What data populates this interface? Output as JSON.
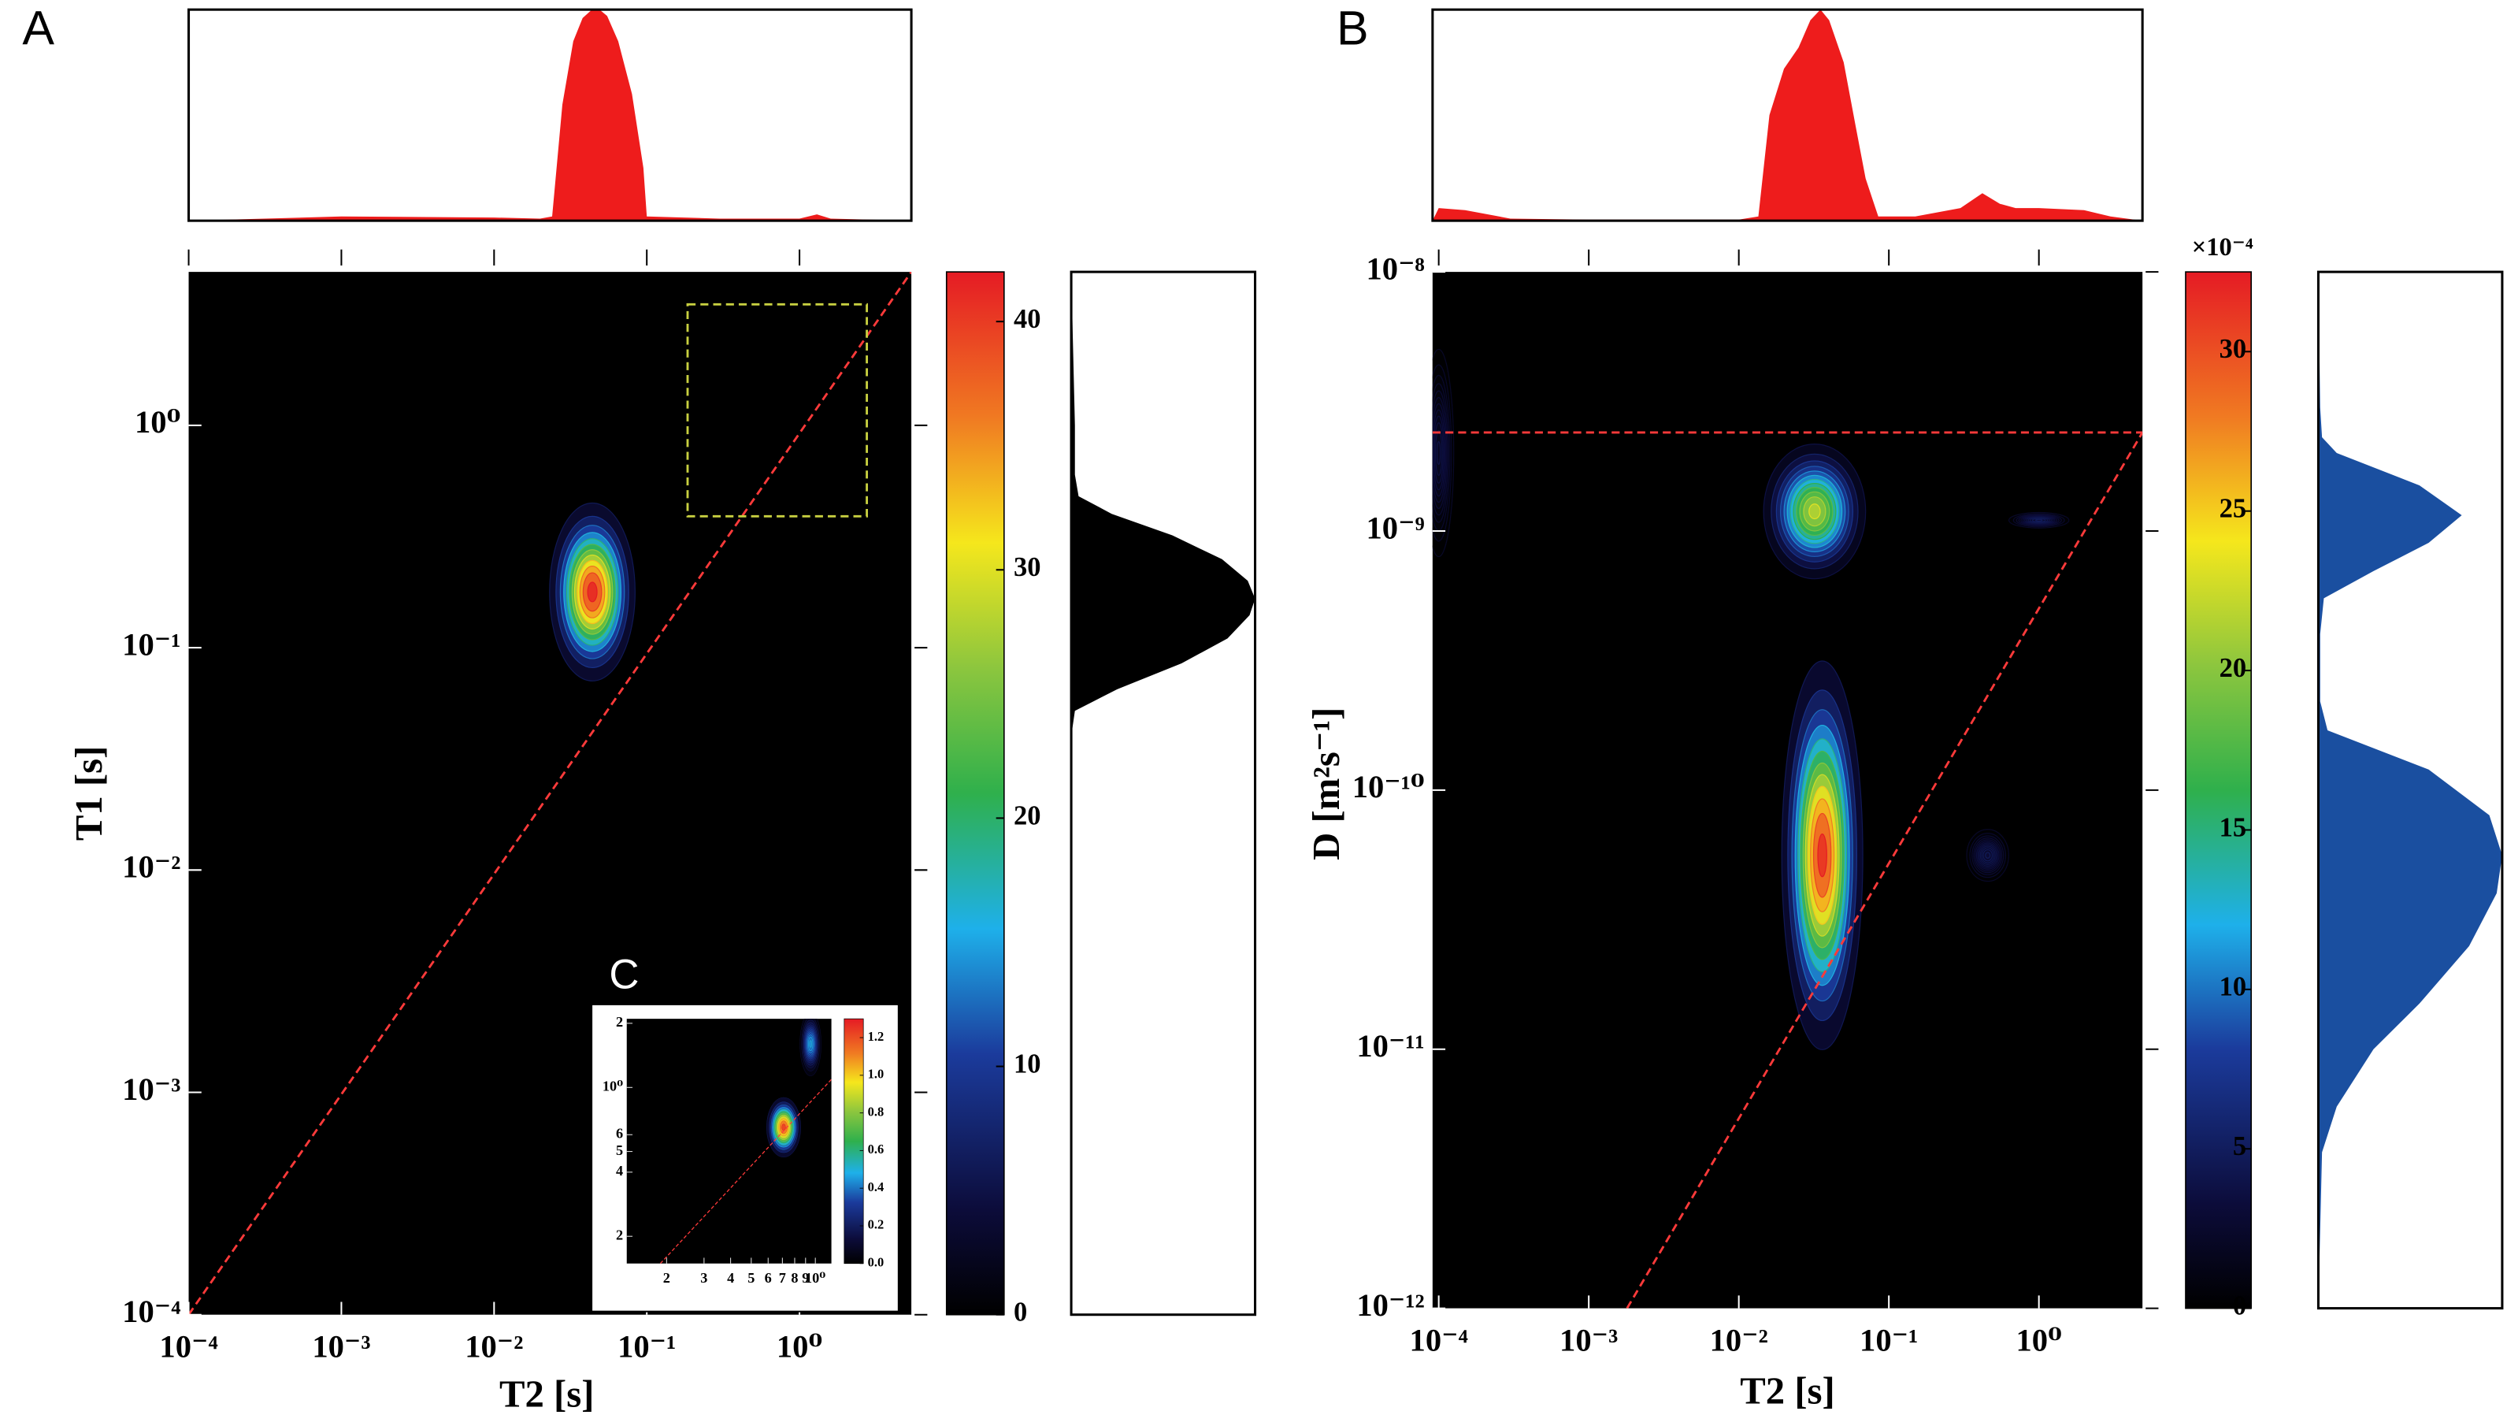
{
  "chart_data": [
    {
      "type": "heatmap",
      "panel_label": "A",
      "x_label": "T2 [s]",
      "y_label": "T1 [s]",
      "log_x": true,
      "log_y": true,
      "xlim": [
        0.0001,
        5.4
      ],
      "ylim": [
        0.0001,
        4.9
      ],
      "xticks": [
        {
          "value": 0.0001,
          "label": "10⁻⁴"
        },
        {
          "value": 0.001,
          "label": "10⁻³"
        },
        {
          "value": 0.01,
          "label": "10⁻²"
        },
        {
          "value": 0.1,
          "label": "10⁻¹"
        },
        {
          "value": 1,
          "label": "10⁰"
        }
      ],
      "yticks": [
        {
          "value": 0.0001,
          "label": "10⁻⁴"
        },
        {
          "value": 0.001,
          "label": "10⁻³"
        },
        {
          "value": 0.01,
          "label": "10⁻²"
        },
        {
          "value": 0.1,
          "label": "10⁻¹"
        },
        {
          "value": 1,
          "label": "10⁰"
        }
      ],
      "colormap": [
        [
          0,
          "#000000"
        ],
        [
          0.1,
          "#0c0c3a"
        ],
        [
          0.25,
          "#1b3b9c"
        ],
        [
          0.37,
          "#1eb0ea"
        ],
        [
          0.5,
          "#2fb04c"
        ],
        [
          0.62,
          "#8cc63e"
        ],
        [
          0.74,
          "#f5e71c"
        ],
        [
          0.86,
          "#f07a22"
        ],
        [
          1,
          "#e51b24"
        ]
      ],
      "colorbar": {
        "lim": [
          0,
          42
        ],
        "ticks": [
          0,
          10,
          20,
          30,
          40
        ]
      },
      "peaks": [
        {
          "x": 0.044,
          "y": 0.178,
          "amplitude": 42,
          "x_width": 0.28,
          "y_width": 0.4
        }
      ],
      "lines": [
        {
          "x": [
            0.0001,
            5.4
          ],
          "y": [
            0.0001,
            4.9
          ],
          "color": "#ff3a3a"
        }
      ],
      "box": {
        "x": [
          0.185,
          2.76
        ],
        "y": [
          0.39,
          3.5
        ],
        "color": "#c8d040"
      },
      "top_projection": {
        "x": [
          0.0001,
          0.001,
          0.01,
          0.02,
          0.024,
          0.028,
          0.033,
          0.038,
          0.043,
          0.049,
          0.055,
          0.065,
          0.08,
          0.095,
          0.1,
          0.3,
          1,
          1.3,
          1.6,
          5.4
        ],
        "values": [
          0,
          0.02,
          0.015,
          0.01,
          0.02,
          0.55,
          0.85,
          0.96,
          0.995,
          1.0,
          0.97,
          0.85,
          0.6,
          0.25,
          0.02,
          0.01,
          0.01,
          0.03,
          0.01,
          0
        ],
        "ylim": [
          0,
          1
        ],
        "color": "#ee1c1c"
      },
      "right_projection": {
        "y": [
          0.0001,
          0.04,
          0.052,
          0.065,
          0.085,
          0.11,
          0.14,
          0.166,
          0.2,
          0.25,
          0.32,
          0.4,
          0.48,
          0.6,
          1,
          4.9
        ],
        "values": [
          0,
          0,
          0.02,
          0.25,
          0.6,
          0.85,
          0.97,
          1.0,
          0.96,
          0.82,
          0.55,
          0.22,
          0.04,
          0.02,
          0.02,
          0
        ],
        "xlim": [
          0,
          1
        ],
        "color": "#000000"
      },
      "inset": {
        "type": "heatmap",
        "panel_label": "C",
        "log_x": true,
        "log_y": true,
        "xlim": [
          0.13,
          1.19
        ],
        "ylim": [
          0.149,
          2.1
        ],
        "xticks": [
          {
            "value": 0.2,
            "label": "2"
          },
          {
            "value": 0.3,
            "label": "3"
          },
          {
            "value": 0.4,
            "label": "4"
          },
          {
            "value": 0.5,
            "label": "5"
          },
          {
            "value": 0.6,
            "label": "6"
          },
          {
            "value": 0.7,
            "label": "7"
          },
          {
            "value": 0.8,
            "label": "8"
          },
          {
            "value": 0.9,
            "label": "9"
          },
          {
            "value": 1,
            "label": "10⁰"
          }
        ],
        "yticks": [
          {
            "value": 0.2,
            "label": "2"
          },
          {
            "value": 0.4,
            "label": "4"
          },
          {
            "value": 0.5,
            "label": "5"
          },
          {
            "value": 0.6,
            "label": "6"
          },
          {
            "value": 1,
            "label": "10⁰"
          },
          2
        ],
        "colormap": [
          [
            0,
            "#000000"
          ],
          [
            0.1,
            "#0c0c3a"
          ],
          [
            0.25,
            "#1b3b9c"
          ],
          [
            0.37,
            "#1eb0ea"
          ],
          [
            0.5,
            "#2fb04c"
          ],
          [
            0.62,
            "#8cc63e"
          ],
          [
            0.74,
            "#f5e71c"
          ],
          [
            0.86,
            "#f07a22"
          ],
          [
            1,
            "#e51b24"
          ]
        ],
        "colorbar": {
          "lim": [
            0,
            1.3
          ],
          "ticks": [
            {
              "value": 0,
              "label": "0.0"
            },
            0.2,
            0.4,
            0.6,
            0.8,
            {
              "value": 1,
              "label": "1.0"
            },
            1.2
          ]
        },
        "peaks": [
          {
            "x": 0.71,
            "y": 0.65,
            "amplitude": 1.25,
            "x_width": 0.08,
            "y_width": 0.14
          },
          {
            "x": 0.95,
            "y": 1.6,
            "amplitude": 0.45,
            "x_width": 0.05,
            "y_width": 0.15
          }
        ],
        "lines": [
          {
            "x": [
              0.187,
              1.19
            ],
            "y": [
              0.149,
              1.09
            ],
            "color": "#ff3a3a"
          }
        ]
      }
    },
    {
      "type": "heatmap",
      "panel_label": "B",
      "x_label": "T2 [s]",
      "y_label": "D [m²s⁻¹]",
      "log_x": true,
      "log_y": true,
      "xlim": [
        9.1e-05,
        4.9
      ],
      "ylim": [
        1e-12,
        1e-08
      ],
      "xticks": [
        {
          "value": 0.0001,
          "label": "10⁻⁴"
        },
        {
          "value": 0.001,
          "label": "10⁻³"
        },
        {
          "value": 0.01,
          "label": "10⁻²"
        },
        {
          "value": 0.1,
          "label": "10⁻¹"
        },
        {
          "value": 1,
          "label": "10⁰"
        }
      ],
      "yticks": [
        {
          "value": 1e-12,
          "label": "10⁻¹²"
        },
        {
          "value": 1e-11,
          "label": "10⁻¹¹"
        },
        {
          "value": 1e-10,
          "label": "10⁻¹⁰"
        },
        {
          "value": 1e-09,
          "label": "10⁻⁹"
        },
        {
          "value": 1e-08,
          "label": "10⁻⁸"
        }
      ],
      "colormap": [
        [
          0,
          "#000000"
        ],
        [
          0.1,
          "#0c0c3a"
        ],
        [
          0.25,
          "#1b3b9c"
        ],
        [
          0.37,
          "#1eb0ea"
        ],
        [
          0.5,
          "#2fb04c"
        ],
        [
          0.62,
          "#8cc63e"
        ],
        [
          0.74,
          "#f5e71c"
        ],
        [
          0.86,
          "#f07a22"
        ],
        [
          1,
          "#e51b24"
        ]
      ],
      "colorbar": {
        "lim": [
          0,
          32.5
        ],
        "ticks": [
          0,
          5,
          10,
          15,
          20,
          25,
          30
        ],
        "label": "×10⁻⁴"
      },
      "peaks": [
        {
          "x": 0.032,
          "y": 1.19e-09,
          "amplitude": 22,
          "x_width": 0.34,
          "y_width": 0.26
        },
        {
          "x": 0.036,
          "y": 5.6e-11,
          "amplitude": 32,
          "x_width": 0.27,
          "y_width": 0.75
        },
        {
          "x": 0.456,
          "y": 5.6e-11,
          "amplitude": 3,
          "x_width": 0.14,
          "y_width": 0.1
        },
        {
          "x": 1.0,
          "y": 1.1e-09,
          "amplitude": 3,
          "x_width": 0.2,
          "y_width": 0.03
        },
        {
          "x": 0.0001,
          "y": 2e-09,
          "amplitude": 2,
          "x_width": 0.1,
          "y_width": 0.4
        }
      ],
      "lines": [
        {
          "x": [
            0.0018,
            4.9
          ],
          "y": [
            1e-12,
            2.4e-09
          ],
          "color": "#ff3a3a"
        },
        {
          "x": [
            9.1e-05,
            4.9
          ],
          "y": [
            2.4e-09,
            2.4e-09
          ],
          "color": "#ff3a3a"
        }
      ],
      "top_projection": {
        "x": [
          9.1e-05,
          0.0001,
          0.00015,
          0.0003,
          0.001,
          0.01,
          0.0135,
          0.016,
          0.02,
          0.025,
          0.03,
          0.035,
          0.04,
          0.05,
          0.06,
          0.07,
          0.085,
          0.15,
          0.3,
          0.42,
          0.55,
          0.7,
          1,
          2,
          3,
          4.9
        ],
        "values": [
          0,
          0.06,
          0.05,
          0.01,
          0.005,
          0.005,
          0.02,
          0.5,
          0.72,
          0.82,
          0.95,
          1.0,
          0.95,
          0.75,
          0.45,
          0.2,
          0.02,
          0.02,
          0.06,
          0.13,
          0.08,
          0.06,
          0.06,
          0.05,
          0.02,
          0
        ],
        "ylim": [
          0,
          1
        ],
        "color": "#ee1c1c"
      },
      "right_projection": {
        "y": [
          1e-12,
          4e-12,
          6e-12,
          1e-11,
          1.5e-11,
          2.5e-11,
          4e-11,
          5.6e-11,
          8e-11,
          1.2e-10,
          1.7e-10,
          2.2e-10,
          4e-10,
          5.5e-10,
          7e-10,
          9e-10,
          1.15e-09,
          1.5e-09,
          2e-09,
          2.3e-09,
          3e-09,
          1e-08
        ],
        "values": [
          0,
          0.02,
          0.1,
          0.3,
          0.55,
          0.82,
          0.97,
          1.0,
          0.93,
          0.6,
          0.05,
          0.01,
          0.01,
          0.03,
          0.3,
          0.6,
          0.78,
          0.55,
          0.1,
          0.02,
          0.01,
          0
        ],
        "xlim": [
          0,
          1
        ],
        "color": "#1a4fa0"
      }
    }
  ]
}
